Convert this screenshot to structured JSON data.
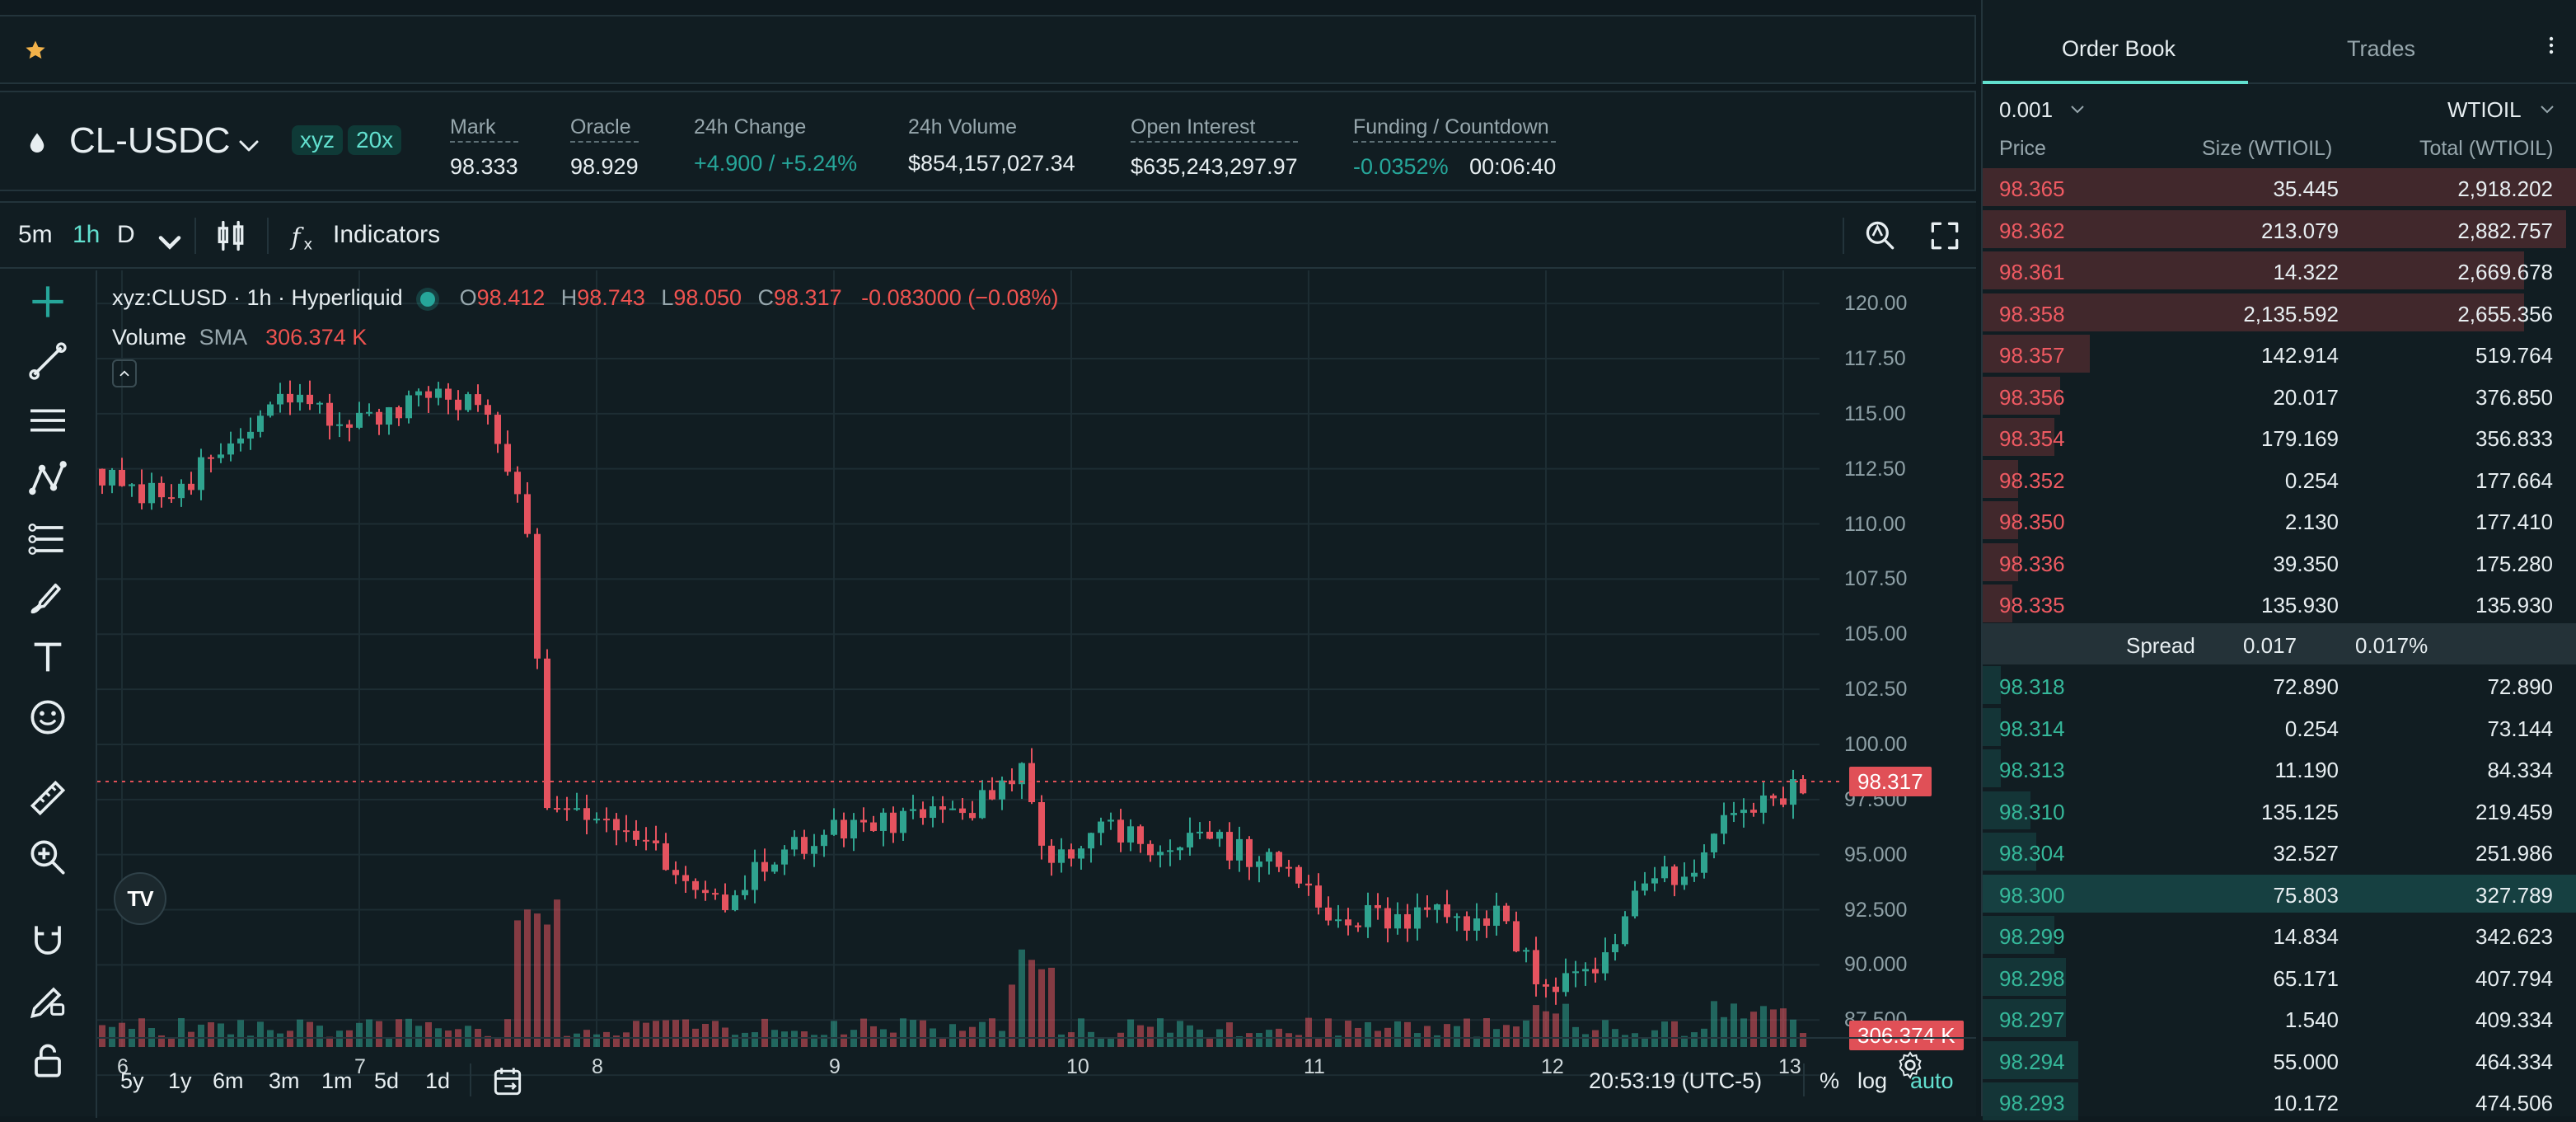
{
  "market": {
    "symbol": "CL-USDC",
    "chips": [
      "xyz",
      "20x"
    ],
    "stats": [
      {
        "label": "Mark",
        "value": "98.333",
        "dotted": true
      },
      {
        "label": "Oracle",
        "value": "98.929",
        "dotted": true
      },
      {
        "label": "24h Change",
        "value": "+4.900 / +5.24%",
        "dotted": false,
        "green": true
      },
      {
        "label": "24h Volume",
        "value": "$854,157,027.34",
        "dotted": false
      },
      {
        "label": "Open Interest",
        "value": "$635,243,297.97",
        "dotted": true
      },
      {
        "label": "Funding / Countdown",
        "value": "-0.0352%",
        "value2": "00:06:40",
        "dotted": true
      }
    ]
  },
  "chart_toolbar": {
    "intervals": [
      "5m",
      "1h",
      "D"
    ],
    "active_interval": "1h",
    "indicators_label": "Indicators"
  },
  "chart_legend": {
    "title": "xyz:CLUSD · 1h · Hyperliquid",
    "o_label": "O",
    "o": "98.412",
    "h_label": "H",
    "h": "98.743",
    "l_label": "L",
    "l": "98.050",
    "c_label": "C",
    "c": "98.317",
    "chg": "-0.083000 (−0.08%)",
    "volume_label": "Volume",
    "sma_label": "SMA",
    "volume_value": "306.374 K"
  },
  "price_axis": {
    "labels": [
      "120.00",
      "117.50",
      "115.00",
      "112.50",
      "110.00",
      "107.50",
      "105.00",
      "102.50",
      "100.00",
      "97.500",
      "95.000",
      "92.500",
      "90.000",
      "87.500"
    ],
    "last_price_tag": "98.317",
    "volume_tag": "306.374 K"
  },
  "time_axis": {
    "labels": [
      "6",
      "7",
      "8",
      "9",
      "10",
      "11",
      "12",
      "13"
    ]
  },
  "bottom_bar": {
    "ranges": [
      "5y",
      "1y",
      "6m",
      "3m",
      "1m",
      "5d",
      "1d"
    ],
    "clock": "20:53:19 (UTC-5)",
    "toggles": [
      "%",
      "log",
      "auto"
    ],
    "active_toggle": "auto"
  },
  "order_book": {
    "tabs": [
      "Order Book",
      "Trades"
    ],
    "active_tab": "Order Book",
    "tick_size": "0.001",
    "unit": "WTIOIL",
    "headers": {
      "price": "Price",
      "size": "Size (WTIOIL)",
      "total": "Total (WTIOIL)"
    },
    "asks": [
      {
        "price": "98.365",
        "size": "35.445",
        "total": "2,918.202",
        "depth": 1.0
      },
      {
        "price": "98.362",
        "size": "213.079",
        "total": "2,882.757",
        "depth": 0.98
      },
      {
        "price": "98.361",
        "size": "14.322",
        "total": "2,669.678",
        "depth": 0.91
      },
      {
        "price": "98.358",
        "size": "2,135.592",
        "total": "2,655.356",
        "depth": 0.91
      },
      {
        "price": "98.357",
        "size": "142.914",
        "total": "519.764",
        "depth": 0.18
      },
      {
        "price": "98.356",
        "size": "20.017",
        "total": "376.850",
        "depth": 0.13
      },
      {
        "price": "98.354",
        "size": "179.169",
        "total": "356.833",
        "depth": 0.12
      },
      {
        "price": "98.352",
        "size": "0.254",
        "total": "177.664",
        "depth": 0.06
      },
      {
        "price": "98.350",
        "size": "2.130",
        "total": "177.410",
        "depth": 0.06
      },
      {
        "price": "98.336",
        "size": "39.350",
        "total": "175.280",
        "depth": 0.06
      },
      {
        "price": "98.335",
        "size": "135.930",
        "total": "135.930",
        "depth": 0.05
      }
    ],
    "spread": {
      "label": "Spread",
      "value": "0.017",
      "pct": "0.017%"
    },
    "bids": [
      {
        "price": "98.318",
        "size": "72.890",
        "total": "72.890",
        "depth": 0.03
      },
      {
        "price": "98.314",
        "size": "0.254",
        "total": "73.144",
        "depth": 0.03
      },
      {
        "price": "98.313",
        "size": "11.190",
        "total": "84.334",
        "depth": 0.03
      },
      {
        "price": "98.310",
        "size": "135.125",
        "total": "219.459",
        "depth": 0.08
      },
      {
        "price": "98.304",
        "size": "32.527",
        "total": "251.986",
        "depth": 0.09
      },
      {
        "price": "98.300",
        "size": "75.803",
        "total": "327.789",
        "depth": 1.0,
        "highlight": true
      },
      {
        "price": "98.299",
        "size": "14.834",
        "total": "342.623",
        "depth": 0.12
      },
      {
        "price": "98.298",
        "size": "65.171",
        "total": "407.794",
        "depth": 0.14
      },
      {
        "price": "98.297",
        "size": "1.540",
        "total": "409.334",
        "depth": 0.14
      },
      {
        "price": "98.294",
        "size": "55.000",
        "total": "464.334",
        "depth": 0.16
      },
      {
        "price": "98.293",
        "size": "10.172",
        "total": "474.506",
        "depth": 0.16
      }
    ]
  },
  "colors": {
    "bg": "#0f1a1f",
    "panel": "#111d22",
    "green": "#26a69a",
    "red": "#ef5350",
    "accent": "#62e0cf"
  },
  "icons": [
    "star-icon",
    "drop-icon",
    "chevron-down-icon",
    "candles-icon",
    "fx-icon",
    "search-zoom-icon",
    "fullscreen-icon",
    "crosshair-icon",
    "trendline-icon",
    "hlines-icon",
    "pattern-icon",
    "fib-icon",
    "brush-icon",
    "text-icon",
    "emoji-icon",
    "ruler-icon",
    "zoom-in-icon",
    "magnet-icon",
    "pencil-lock-icon",
    "lock-icon",
    "settings-icon",
    "calendar-icon",
    "kebab-icon",
    "tradingview-logo"
  ]
}
